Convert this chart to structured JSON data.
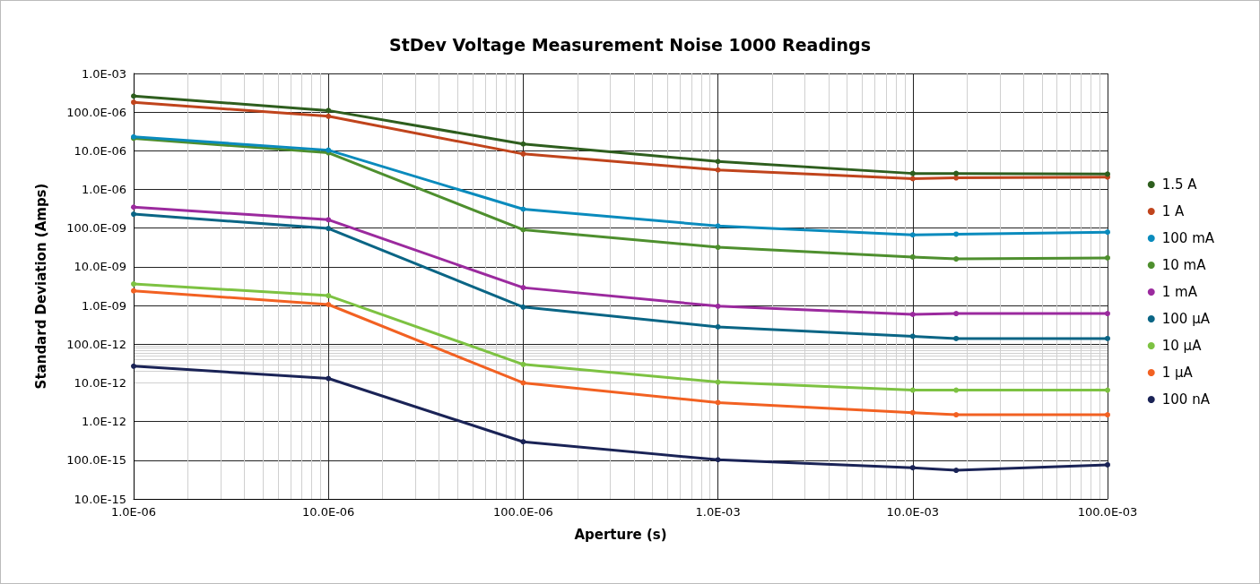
{
  "chart_data": {
    "type": "line",
    "title": "StDev Voltage Measurement Noise 1000 Readings",
    "xlabel": "Aperture (s)",
    "ylabel": "Standard Deviation (Amps)",
    "x": [
      1e-06,
      1e-05,
      0.0001,
      0.001,
      0.01,
      0.0167,
      0.1
    ],
    "log": "xy",
    "grid": true,
    "legend": "right",
    "marker": "circle",
    "line_style": "solid",
    "xlim": [
      1e-06,
      0.1
    ],
    "xticks": [
      {
        "value": 1e-06,
        "label": "1.0E-06"
      },
      {
        "value": 1e-05,
        "label": "10.0E-06"
      },
      {
        "value": 0.0001,
        "label": "100.0E-06"
      },
      {
        "value": 0.001,
        "label": "1.0E-03"
      },
      {
        "value": 0.01,
        "label": "10.0E-03"
      },
      {
        "value": 0.1,
        "label": "100.0E-03"
      }
    ],
    "ylim": [
      1e-14,
      0.001
    ],
    "yticks": [
      {
        "value": 1e-14,
        "label": "10.0E-15"
      },
      {
        "value": 1e-13,
        "label": "100.0E-15"
      },
      {
        "value": 1e-12,
        "label": "1.0E-12"
      },
      {
        "value": 1e-11,
        "label": "10.0E-12"
      },
      {
        "value": 1e-10,
        "label": "100.0E-12"
      },
      {
        "value": 1e-09,
        "label": "1.0E-09"
      },
      {
        "value": 1e-08,
        "label": "10.0E-09"
      },
      {
        "value": 1e-07,
        "label": "100.0E-09"
      },
      {
        "value": 1e-06,
        "label": "1.0E-06"
      },
      {
        "value": 1e-05,
        "label": "10.0E-06"
      },
      {
        "value": 0.0001,
        "label": "100.0E-06"
      },
      {
        "value": 0.001,
        "label": "1.0E-03"
      }
    ],
    "series": [
      {
        "name": "1.5 A",
        "color": "#2e5e1e",
        "values": [
          0.00026,
          0.00011,
          1.5e-05,
          5.3e-06,
          2.6e-06,
          2.6e-06,
          2.5e-06
        ]
      },
      {
        "name": "1 A",
        "color": "#c0441c",
        "values": [
          0.00018,
          7.8e-05,
          8.3e-06,
          3.2e-06,
          1.9e-06,
          2e-06,
          2.1e-06
        ]
      },
      {
        "name": "100 mA",
        "color": "#0a8bbd",
        "values": [
          2.3e-05,
          1.04e-05,
          3.1e-07,
          1.14e-07,
          6.7e-08,
          7e-08,
          7.9e-08
        ]
      },
      {
        "name": "10 mA",
        "color": "#4e8f2e",
        "values": [
          2.1e-05,
          8.9e-06,
          9.1e-08,
          3.2e-08,
          1.8e-08,
          1.6e-08,
          1.7e-08
        ]
      },
      {
        "name": "1 mA",
        "color": "#9b2a9e",
        "values": [
          3.5e-07,
          1.65e-07,
          2.9e-09,
          9.6e-10,
          5.9e-10,
          6.2e-10,
          6.2e-10
        ]
      },
      {
        "name": "100 µA",
        "color": "#0a6585",
        "values": [
          2.3e-07,
          9.8e-08,
          9.1e-10,
          2.8e-10,
          1.6e-10,
          1.4e-10,
          1.4e-10
        ]
      },
      {
        "name": "10 µA",
        "color": "#7dc242",
        "values": [
          3.6e-09,
          1.8e-09,
          3e-11,
          1.05e-11,
          6.5e-12,
          6.5e-12,
          6.5e-12
        ]
      },
      {
        "name": "1 µA",
        "color": "#f26122",
        "values": [
          2.4e-09,
          1.06e-09,
          1e-11,
          3.1e-12,
          1.7e-12,
          1.5e-12,
          1.5e-12
        ]
      },
      {
        "name": "100 nA",
        "color": "#1a2356",
        "values": [
          2.7e-11,
          1.3e-11,
          3e-13,
          1.03e-13,
          6.4e-14,
          5.5e-14,
          7.6e-14
        ]
      }
    ]
  }
}
